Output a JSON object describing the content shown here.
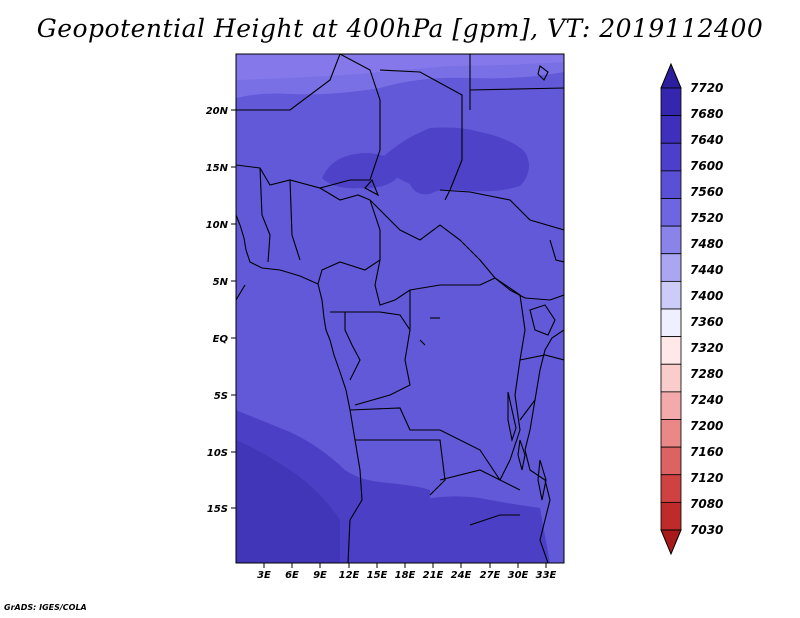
{
  "title": "Geopotential Height at 400hPa [gpm], VT: 2019112400",
  "credit": "GrADS: IGES/COLA",
  "map": {
    "lat_labels": [
      "20N",
      "15N",
      "10N",
      "5N",
      "EQ",
      "5S",
      "10S",
      "15S"
    ],
    "lon_labels": [
      "3E",
      "6E",
      "9E",
      "12E",
      "15E",
      "18E",
      "21E",
      "24E",
      "27E",
      "30E",
      "33E"
    ]
  },
  "colorbar": {
    "levels": [
      "7720",
      "7680",
      "7640",
      "7600",
      "7560",
      "7520",
      "7480",
      "7440",
      "7400",
      "7360",
      "7320",
      "7280",
      "7240",
      "7200",
      "7160",
      "7120",
      "7080",
      "7030"
    ],
    "colors": [
      "#2d1ea0",
      "#3526b0",
      "#3e30bd",
      "#4b3fcb",
      "#5a50d5",
      "#6e66e0",
      "#8a84ea",
      "#aaa6f1",
      "#cdcbf7",
      "#efefff",
      "#ffe8e8",
      "#fbcccc",
      "#f4aaaa",
      "#ea8888",
      "#dd6262",
      "#d04242",
      "#bf2a2a",
      "#a81a1a"
    ]
  }
}
